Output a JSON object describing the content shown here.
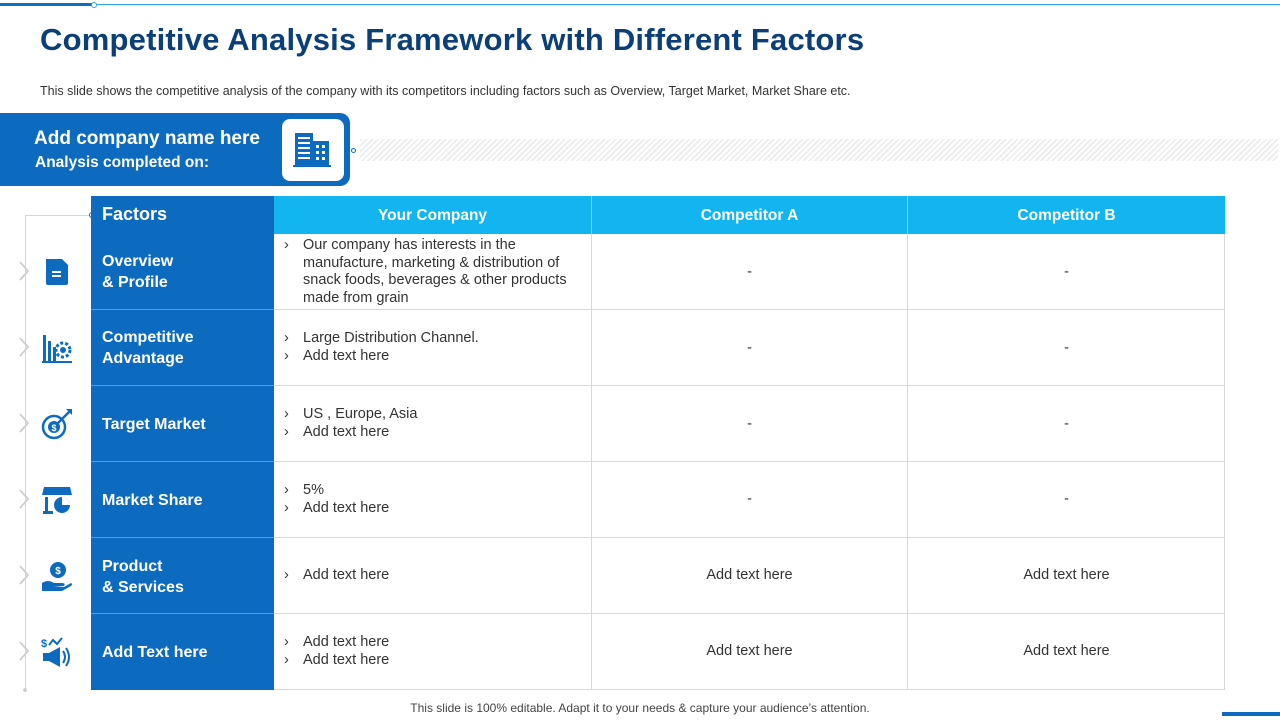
{
  "slide": {
    "title": "Competitive Analysis Framework with Different Factors",
    "subtitle": "This slide shows the competitive analysis of the company with its competitors including factors such as Overview,  Target Market, Market Share etc.",
    "company_name": "Add company name here",
    "analysis_label": "Analysis completed on:",
    "footer": "This slide is 100% editable. Adapt it to your needs & capture your audience’s attention."
  },
  "table": {
    "factors_header": "Factors",
    "columns": [
      "Your Company",
      "Competitor A",
      "Competitor B"
    ],
    "rows": [
      {
        "factor": "Overview\n& Profile",
        "icon": "document-icon",
        "your_company": [
          "Our company has interests in the manufacture, marketing & distribution of snack foods, beverages & other products made from grain"
        ],
        "competitor_a": "-",
        "competitor_b": "-"
      },
      {
        "factor": "Competitive\nAdvantage",
        "icon": "chart-gear-icon",
        "your_company": [
          "Large Distribution Channel.",
          "Add text here"
        ],
        "competitor_a": "-",
        "competitor_b": "-"
      },
      {
        "factor": "Target Market",
        "icon": "target-dollar-icon",
        "your_company": [
          "US , Europe, Asia",
          "Add text here"
        ],
        "competitor_a": "-",
        "competitor_b": "-"
      },
      {
        "factor": "Market Share",
        "icon": "store-pie-icon",
        "your_company": [
          "5%",
          "Add text here"
        ],
        "competitor_a": "-",
        "competitor_b": "-"
      },
      {
        "factor": "Product\n& Services",
        "icon": "hand-dollar-gear-icon",
        "your_company": [
          "Add text here"
        ],
        "competitor_a": "Add text here",
        "competitor_b": "Add text here"
      },
      {
        "factor": "Add  Text here",
        "icon": "megaphone-dollar-icon",
        "your_company": [
          "Add text here",
          "Add text here"
        ],
        "competitor_a": "Add text here",
        "competitor_b": "Add text here"
      }
    ],
    "bullet_marker": "›"
  },
  "colors": {
    "title": "#0b3f78",
    "primary_blue": "#0d6bbf",
    "header_cyan": "#12b5f0",
    "grid": "#d9d9d9"
  }
}
